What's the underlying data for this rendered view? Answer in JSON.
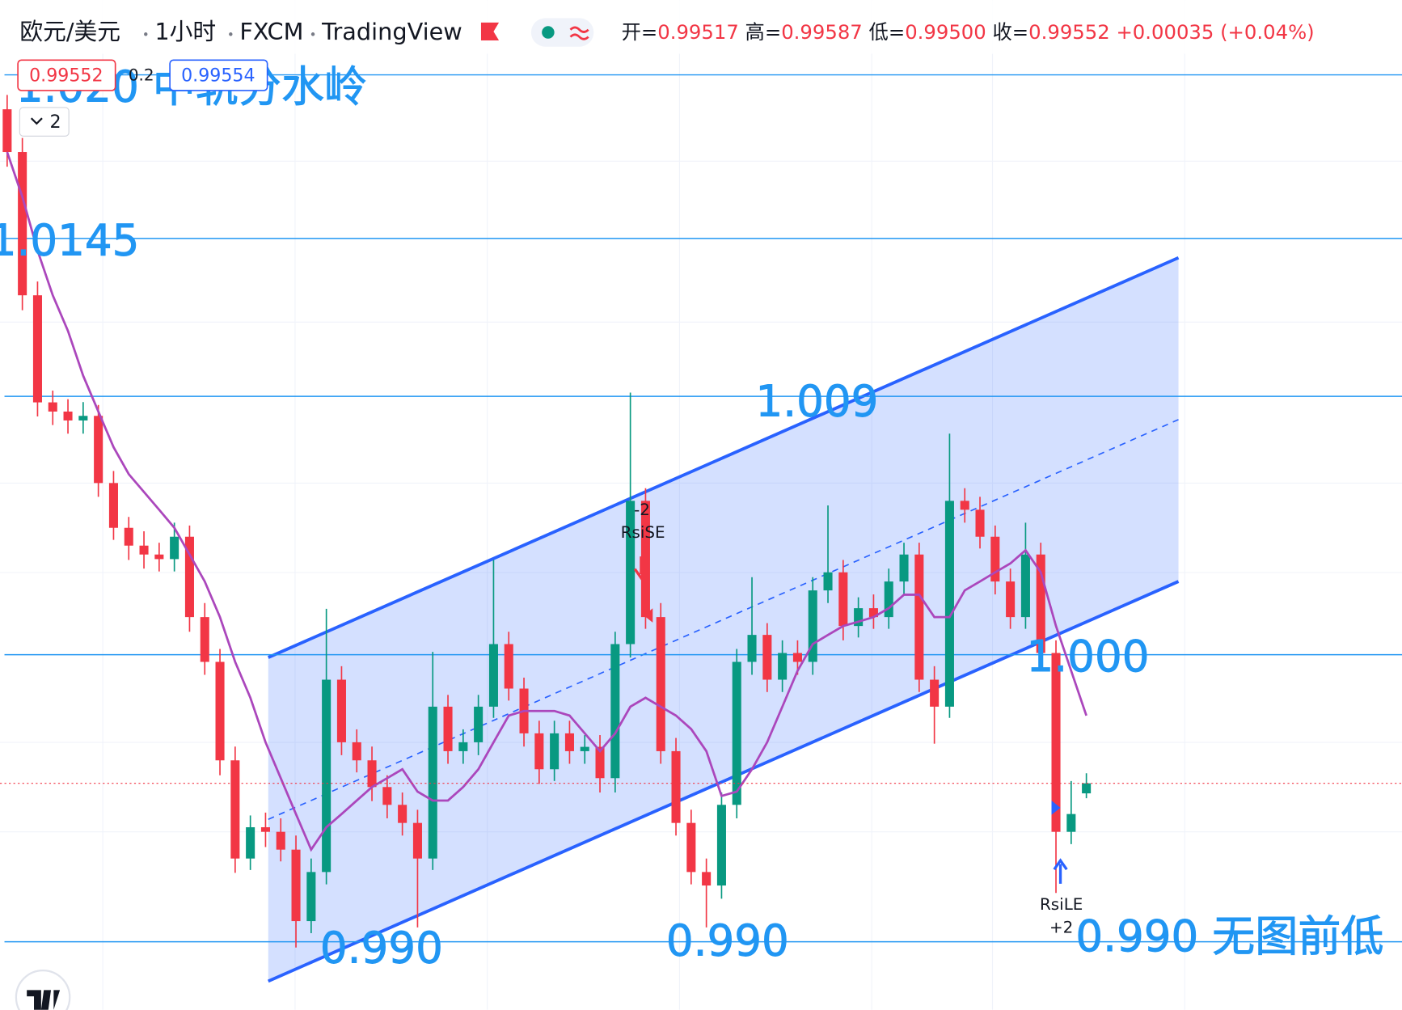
{
  "header": {
    "symbol": "欧元/美元",
    "interval": "1小时",
    "broker": "FXCM",
    "platform": "TradingView",
    "ohlc": [
      {
        "label": "开=",
        "value": "0.99517"
      },
      {
        "label": "高=",
        "value": "0.99587"
      },
      {
        "label": "低=",
        "value": "0.99500"
      },
      {
        "label": "收=",
        "value": "0.99552"
      }
    ],
    "change": "+0.00035 (+0.04%)",
    "bid": "0.99552",
    "spread": "0.2",
    "ask": "0.99554",
    "indicators": "2"
  },
  "chart_data": {
    "type": "candlestick",
    "open": [
      1.019,
      1.01751,
      1.01252,
      1.00879,
      1.00847,
      1.00816,
      1.00832,
      1.00598,
      1.00442,
      1.0038,
      1.00349,
      1.00333,
      1.00411,
      1.00131,
      0.99975,
      0.99632,
      0.9929,
      0.99399,
      0.99383,
      0.99321,
      0.99072,
      0.99243,
      0.99913,
      0.99695,
      0.99632,
      0.99539,
      0.99477,
      0.99414,
      0.9929,
      0.99819,
      0.99664,
      0.99695,
      0.99819,
      1.00037,
      0.99882,
      0.99726,
      0.99601,
      0.99726,
      0.99664,
      0.99679,
      0.9957,
      1.00037,
      1.00536,
      1.00131,
      0.99664,
      0.99414,
      0.99243,
      0.99196,
      0.99477,
      0.99975,
      1.00069,
      0.99913,
      1.00006,
      0.99975,
      1.00224,
      1.00287,
      1.001,
      1.00162,
      1.00131,
      1.00255,
      1.00349,
      0.99913,
      0.99819,
      1.00536,
      1.00505,
      1.00411,
      1.00255,
      1.00131,
      1.00349,
      1.00006,
      0.99383,
      0.99517
    ],
    "high": [
      1.0195,
      1.018,
      1.013,
      1.0092,
      1.0089,
      1.0088,
      1.0087,
      1.0064,
      1.0048,
      1.0043,
      1.0039,
      1.0046,
      1.0045,
      1.0018,
      1.0002,
      0.9968,
      0.9944,
      0.9945,
      0.9943,
      0.9937,
      0.9929,
      1.0016,
      0.9996,
      0.9974,
      0.9968,
      0.9958,
      0.9952,
      0.9946,
      1.0001,
      0.9986,
      0.9974,
      0.9986,
      1.0033,
      1.0008,
      0.9992,
      0.9977,
      0.9977,
      0.9977,
      0.9972,
      0.9972,
      1.0008,
      1.00913,
      1.0058,
      1.0018,
      0.9971,
      0.9946,
      0.9929,
      0.9952,
      1.0002,
      1.0027,
      1.0011,
      1.0005,
      1.0005,
      1.0027,
      1.0052,
      1.0033,
      1.002,
      1.0021,
      1.003,
      1.0039,
      1.0039,
      0.9996,
      1.0077,
      1.0058,
      1.0055,
      1.0045,
      1.003,
      1.0046,
      1.0039,
      1.0005,
      0.9956,
      0.99587
    ],
    "low": [
      1.017,
      1.012,
      1.0083,
      1.008,
      1.0077,
      1.0077,
      1.0055,
      1.004,
      1.0033,
      1.003,
      1.0029,
      1.0029,
      1.0008,
      0.9993,
      0.9958,
      0.9924,
      0.9925,
      0.9933,
      0.9928,
      0.9898,
      0.9903,
      0.992,
      0.9965,
      0.9959,
      0.9949,
      0.9943,
      0.9937,
      0.9905,
      0.9925,
      0.9962,
      0.9962,
      0.9965,
      0.9978,
      0.9984,
      0.9968,
      0.9955,
      0.9956,
      0.9962,
      0.9962,
      0.9952,
      0.9952,
      0.9999,
      1.0009,
      0.9962,
      0.9937,
      0.992,
      0.9905,
      0.9915,
      0.9943,
      0.9993,
      0.9987,
      0.9987,
      0.9993,
      0.9993,
      1.0018,
      1.0005,
      1.0006,
      1.0009,
      1.0009,
      1.0021,
      0.9987,
      0.9969,
      0.9978,
      1.0046,
      1.0037,
      1.0021,
      1.0009,
      1.0009,
      0.9996,
      0.9917,
      0.9934,
      0.995
    ],
    "close": [
      1.01751,
      1.01252,
      1.00879,
      1.00847,
      1.00816,
      1.00832,
      1.00598,
      1.00442,
      1.0038,
      1.00349,
      1.00333,
      1.00411,
      1.00131,
      0.99975,
      0.99632,
      0.9929,
      0.99399,
      0.99383,
      0.99321,
      0.99072,
      0.99243,
      0.99913,
      0.99695,
      0.99632,
      0.99539,
      0.99477,
      0.99414,
      0.9929,
      0.99819,
      0.99664,
      0.99695,
      0.99819,
      1.00037,
      0.99882,
      0.99726,
      0.99601,
      0.99726,
      0.99664,
      0.99679,
      0.9957,
      1.00037,
      1.00536,
      1.00131,
      0.99664,
      0.99414,
      0.99243,
      0.99196,
      0.99477,
      0.99975,
      1.00069,
      0.99913,
      1.00006,
      0.99975,
      1.00224,
      1.00287,
      1.001,
      1.00162,
      1.00131,
      1.00255,
      1.00349,
      0.99913,
      0.99819,
      1.00536,
      1.00505,
      1.00411,
      1.00255,
      1.00131,
      1.00349,
      1.00006,
      0.99383,
      0.99445,
      0.99552
    ],
    "up_color": "#089981",
    "down_color": "#f23645",
    "ma": {
      "color": "#ab47bc",
      "values": [
        1.01751,
        1.01595,
        1.01408,
        1.01252,
        1.01128,
        1.00972,
        1.00847,
        1.00723,
        1.00629,
        1.00567,
        1.00505,
        1.00442,
        1.00349,
        1.00255,
        1.00131,
        0.99975,
        0.9985,
        0.99695,
        0.9957,
        0.99445,
        0.99321,
        0.99399,
        0.99445,
        0.99492,
        0.99539,
        0.9957,
        0.99601,
        0.99523,
        0.99492,
        0.99492,
        0.99539,
        0.99601,
        0.99695,
        0.99788,
        0.99804,
        0.99804,
        0.99804,
        0.99788,
        0.99726,
        0.99664,
        0.99726,
        0.99819,
        0.9985,
        0.99819,
        0.99788,
        0.99741,
        0.99664,
        0.99508,
        0.99523,
        0.99601,
        0.99695,
        0.99819,
        0.99944,
        1.00037,
        1.00069,
        1.001,
        1.00115,
        1.00131,
        1.00162,
        1.00209,
        1.00209,
        1.00131,
        1.00131,
        1.00224,
        1.00255,
        1.00287,
        1.00318,
        1.00364,
        1.00287,
        1.001,
        0.99944,
        0.99788
      ]
    },
    "ylim": [
      0.98763,
      1.0228
    ],
    "levels": [
      {
        "value": 1.0202,
        "labels": [
          "1.020 中轨分水岭"
        ]
      },
      {
        "value": 1.0145,
        "labels": [
          "1.0145"
        ]
      },
      {
        "value": 1.009,
        "labels": [
          "1.009"
        ]
      },
      {
        "value": 1.0,
        "labels": [
          "1.000"
        ]
      },
      {
        "value": 0.99,
        "labels": [
          "0.990",
          "0.990",
          "0.990 无图前低"
        ]
      }
    ],
    "level_color": "#2196f3",
    "last_price_line": true,
    "signals": [
      {
        "qty": "-2",
        "name": "RsiSE"
      },
      {
        "qty": "+2",
        "name": "RsiLE"
      }
    ]
  }
}
